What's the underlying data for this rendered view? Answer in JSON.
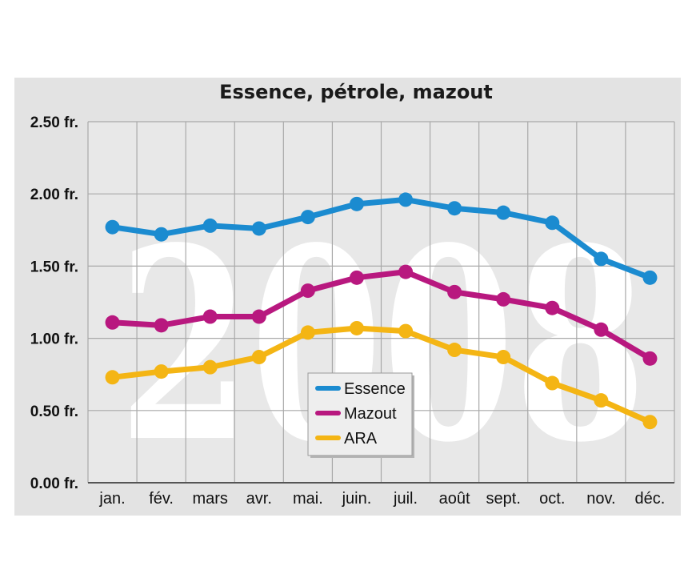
{
  "chart_data": {
    "type": "line",
    "title": "Essence, pétrole, mazout",
    "watermark": "2008",
    "categories": [
      "jan.",
      "fév.",
      "mars",
      "avr.",
      "mai.",
      "juin.",
      "juil.",
      "août",
      "sept.",
      "oct.",
      "nov.",
      "déc."
    ],
    "y_ticks": [
      {
        "value": 0,
        "label": "0.00 fr."
      },
      {
        "value": 0.5,
        "label": "0.50 fr."
      },
      {
        "value": 1,
        "label": "1.00 fr."
      },
      {
        "value": 1.5,
        "label": "1.50 fr."
      },
      {
        "value": 2,
        "label": "2.00 fr."
      },
      {
        "value": 2.5,
        "label": "2.50 fr."
      }
    ],
    "ylim": [
      0,
      2.5
    ],
    "grid": true,
    "legend_position": "bottom-center",
    "series": [
      {
        "name": "Essence",
        "color": "#1b8bd0",
        "values": [
          1.77,
          1.72,
          1.78,
          1.76,
          1.84,
          1.93,
          1.96,
          1.9,
          1.87,
          1.8,
          1.55,
          1.42
        ]
      },
      {
        "name": "Mazout",
        "color": "#b8187f",
        "values": [
          1.11,
          1.09,
          1.15,
          1.15,
          1.33,
          1.42,
          1.46,
          1.32,
          1.27,
          1.21,
          1.06,
          0.86
        ]
      },
      {
        "name": "ARA",
        "color": "#f4b514",
        "values": [
          0.73,
          0.77,
          0.8,
          0.87,
          1.04,
          1.07,
          1.05,
          0.92,
          0.87,
          0.69,
          0.57,
          0.42
        ]
      }
    ]
  }
}
